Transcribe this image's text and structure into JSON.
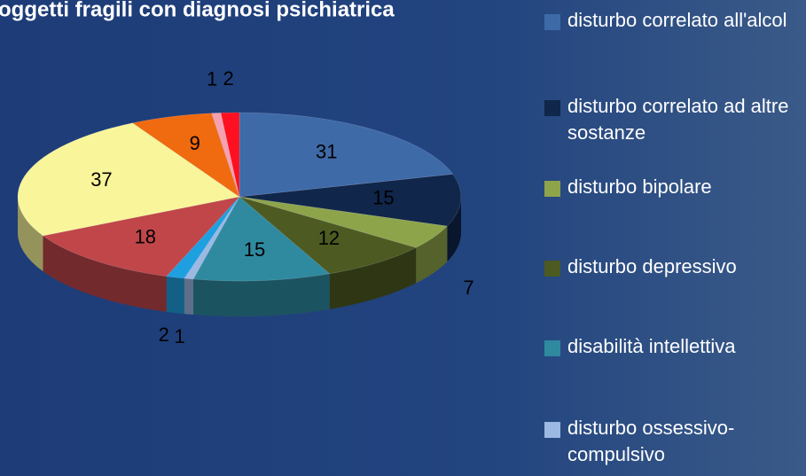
{
  "chart_data": {
    "type": "pie3d",
    "title": "oggetti fragili con diagnosi psichiatrica",
    "categories": [
      "disturbo correlato all'alcol",
      "disturbo correlato ad altre sostanze",
      "disturbo bipolare",
      "disturbo depressivo",
      "disabilità intellettiva",
      "disturbo ossessivo-compulsivo",
      null,
      null,
      null,
      null,
      null,
      null
    ],
    "values": [
      31,
      15,
      7,
      12,
      15,
      1,
      2,
      18,
      37,
      9,
      1,
      2
    ],
    "colors": [
      "#3f6aa8",
      "#10264a",
      "#8ea44a",
      "#4d5a22",
      "#2f8aa0",
      "#9bb9e3",
      "#1ea0e0",
      "#c0464a",
      "#f9f59a",
      "#f06a10",
      "#f5a0b0",
      "#ff1020"
    ]
  }
}
